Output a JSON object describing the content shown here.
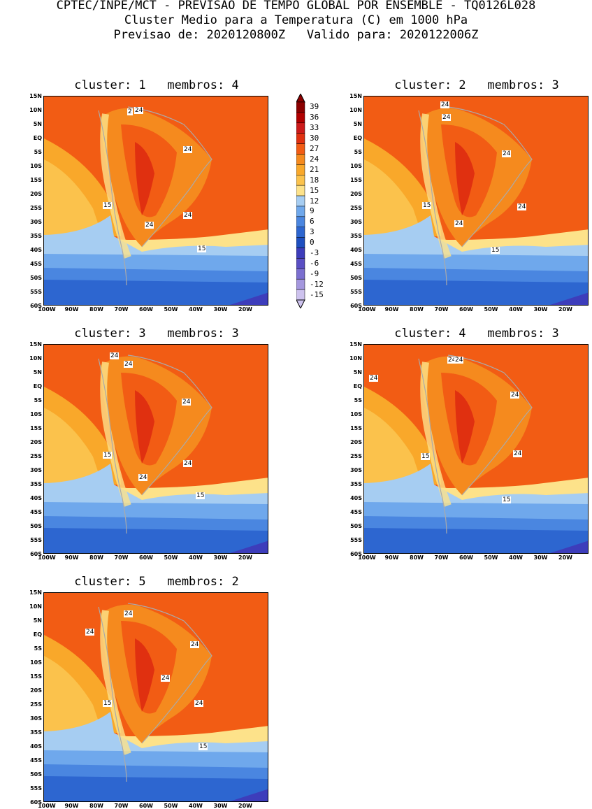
{
  "header": {
    "line1": "CPTEC/INPE/MCT - PREVISAO DE TEMPO GLOBAL POR ENSEMBLE - TQ0126L028",
    "line2": "Cluster Medio para a Temperatura (C) em 1000 hPa",
    "line3": "Previsao de: 2020120800Z   Valido para: 2020122006Z"
  },
  "lat_labels": [
    "15N",
    "10N",
    "5N",
    "EQ",
    "5S",
    "10S",
    "15S",
    "20S",
    "25S",
    "30S",
    "35S",
    "40S",
    "45S",
    "50S",
    "55S",
    "60S"
  ],
  "lon_labels": [
    "100W",
    "90W",
    "80W",
    "70W",
    "60W",
    "50W",
    "40W",
    "30W",
    "20W"
  ],
  "colorbar": {
    "levels": [
      "39",
      "36",
      "33",
      "30",
      "27",
      "24",
      "21",
      "18",
      "15",
      "12",
      "9",
      "6",
      "3",
      "0",
      "-3",
      "-6",
      "-9",
      "-12",
      "-15"
    ],
    "colors": [
      "#8b0000",
      "#b00000",
      "#cc1a1a",
      "#e03010",
      "#f25c14",
      "#f58a1e",
      "#f9a82a",
      "#fbc24c",
      "#fde28a",
      "#a6cdf2",
      "#6fa8ec",
      "#4a86e0",
      "#2d66d0",
      "#1e4fc0",
      "#3d3dbb",
      "#5a4fc4",
      "#7b6fd0",
      "#a497de",
      "#cdc2ee"
    ]
  },
  "panels": [
    {
      "title": "cluster: 1   membros: 4",
      "labels": [
        {
          "t": "24",
          "x": 130,
          "y": 16
        },
        {
          "t": "2",
          "x": 120,
          "y": 18
        },
        {
          "t": "24",
          "x": 200,
          "y": 72
        },
        {
          "t": "24",
          "x": 200,
          "y": 166
        },
        {
          "t": "24",
          "x": 145,
          "y": 180
        },
        {
          "t": "15",
          "x": 85,
          "y": 152
        },
        {
          "t": "15",
          "x": 220,
          "y": 214
        }
      ]
    },
    {
      "title": "cluster: 2   membros: 3",
      "labels": [
        {
          "t": "24",
          "x": 110,
          "y": 8
        },
        {
          "t": "24",
          "x": 112,
          "y": 26
        },
        {
          "t": "24",
          "x": 198,
          "y": 78
        },
        {
          "t": "24",
          "x": 220,
          "y": 154
        },
        {
          "t": "24",
          "x": 130,
          "y": 178
        },
        {
          "t": "15",
          "x": 84,
          "y": 152
        },
        {
          "t": "15",
          "x": 182,
          "y": 216
        }
      ]
    },
    {
      "title": "cluster: 3   membros: 3",
      "labels": [
        {
          "t": "24",
          "x": 95,
          "y": 12
        },
        {
          "t": "24",
          "x": 115,
          "y": 24
        },
        {
          "t": "24",
          "x": 198,
          "y": 78
        },
        {
          "t": "24",
          "x": 200,
          "y": 166
        },
        {
          "t": "24",
          "x": 136,
          "y": 186
        },
        {
          "t": "15",
          "x": 85,
          "y": 154
        },
        {
          "t": "15",
          "x": 218,
          "y": 212
        }
      ]
    },
    {
      "title": "cluster: 4   membros: 3",
      "labels": [
        {
          "t": "24",
          "x": 8,
          "y": 44
        },
        {
          "t": "24",
          "x": 120,
          "y": 18
        },
        {
          "t": "24",
          "x": 130,
          "y": 18
        },
        {
          "t": "24",
          "x": 210,
          "y": 68
        },
        {
          "t": "24",
          "x": 214,
          "y": 152
        },
        {
          "t": "15",
          "x": 82,
          "y": 156
        },
        {
          "t": "15",
          "x": 198,
          "y": 218
        }
      ]
    },
    {
      "title": "cluster: 5   membros: 2",
      "labels": [
        {
          "t": "24",
          "x": 115,
          "y": 26
        },
        {
          "t": "24",
          "x": 60,
          "y": 52
        },
        {
          "t": "24",
          "x": 210,
          "y": 70
        },
        {
          "t": "24",
          "x": 168,
          "y": 118
        },
        {
          "t": "24",
          "x": 216,
          "y": 154
        },
        {
          "t": "15",
          "x": 85,
          "y": 154
        },
        {
          "t": "15",
          "x": 222,
          "y": 216
        }
      ]
    }
  ]
}
